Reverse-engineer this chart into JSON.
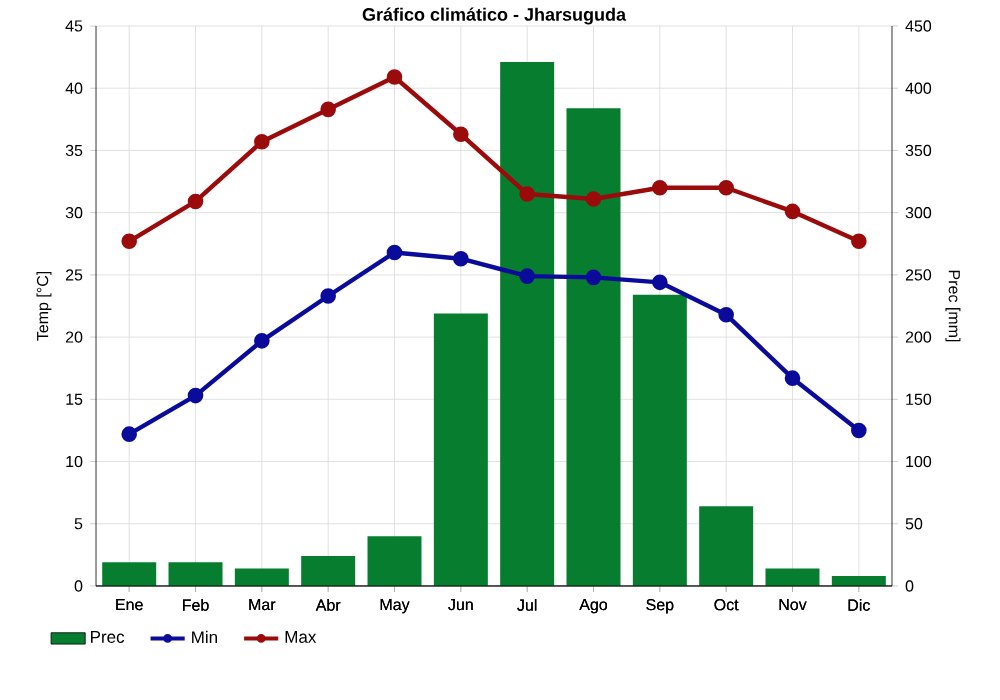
{
  "chart_data": {
    "type": "line",
    "title": "Gráfico climático - Jharsuguda",
    "ylabel": "Temp [°C]",
    "y2label": "Prec [mm]",
    "categories": [
      "Ene",
      "Feb",
      "Mar",
      "Abr",
      "May",
      "Jun",
      "Jul",
      "Ago",
      "Sep",
      "Oct",
      "Nov",
      "Dic"
    ],
    "series": [
      {
        "name": "Prec",
        "type": "bar",
        "axis": "y2",
        "color": "#077d30",
        "values": [
          19,
          19,
          14,
          24,
          40,
          219,
          421,
          384,
          234,
          64,
          14,
          8
        ]
      },
      {
        "name": "Min",
        "color": "#0b0b9b",
        "values": [
          12.2,
          15.3,
          19.7,
          23.3,
          26.8,
          26.3,
          24.9,
          24.8,
          24.4,
          21.8,
          16.7,
          12.5
        ]
      },
      {
        "name": "Max",
        "color": "#9b0b0b",
        "values": [
          27.7,
          30.9,
          35.7,
          38.3,
          40.9,
          36.3,
          31.5,
          31.1,
          32.0,
          32.0,
          30.1,
          27.7
        ]
      }
    ],
    "ylim": [
      0,
      45
    ],
    "yticks": [
      0,
      5,
      10,
      15,
      20,
      25,
      30,
      35,
      40,
      45
    ],
    "y2lim": [
      0,
      450
    ],
    "y2ticks": [
      0,
      50,
      100,
      150,
      200,
      250,
      300,
      350,
      400,
      450
    ],
    "grid": true,
    "legend": "bottom",
    "marker": "circle",
    "line_style": "solid"
  }
}
